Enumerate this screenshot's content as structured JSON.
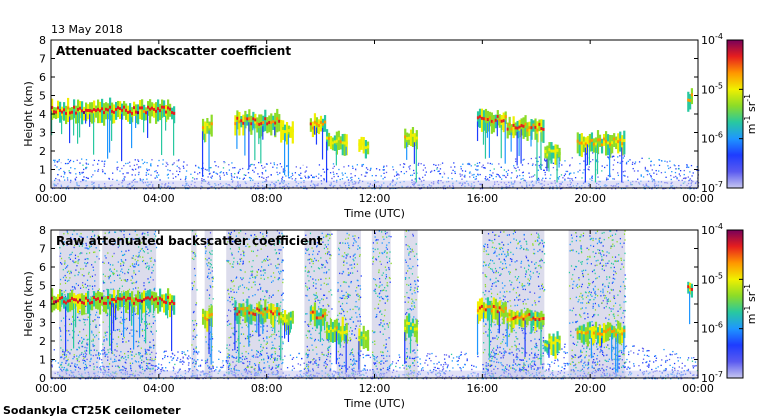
{
  "date_label": "13 May 2018",
  "footer": "Sodankyla CT25K ceilometer",
  "colors": {
    "frame": "#000000",
    "background_fill": "#dcdcec",
    "colormap": [
      "#c8c8f0",
      "#5a5af0",
      "#1e3cff",
      "#1e96ff",
      "#28c8a0",
      "#8cdc28",
      "#f0f000",
      "#ff9600",
      "#e61e1e",
      "#78005a"
    ]
  },
  "chart_data": [
    {
      "type": "heatmap",
      "title": "Attenuated backscatter coefficient",
      "xlabel": "Time (UTC)",
      "ylabel": "Height (km)",
      "xlim": [
        0,
        24
      ],
      "ylim": [
        0,
        8
      ],
      "x_ticks": [
        "00:00",
        "04:00",
        "08:00",
        "12:00",
        "16:00",
        "20:00",
        "00:00"
      ],
      "y_ticks": [
        "0",
        "1",
        "2",
        "3",
        "4",
        "5",
        "6",
        "7",
        "8"
      ],
      "colorbar": {
        "scale": "log",
        "range": [
          1e-07,
          0.0001
        ],
        "tick_labels": [
          "10",
          "10",
          "10",
          "10"
        ],
        "tick_exponents": [
          "-7",
          "-6",
          "-5",
          "-4"
        ],
        "unit": "m  sr",
        "unit_exponents": [
          "-1",
          "-1"
        ]
      },
      "cloud_layers": [
        {
          "t0": 0.0,
          "t1": 4.6,
          "height_km": 4.2,
          "intensity": 0.95
        },
        {
          "t0": 5.6,
          "t1": 6.0,
          "height_km": 3.3,
          "intensity": 0.8
        },
        {
          "t0": 6.8,
          "t1": 8.5,
          "height_km": 3.6,
          "intensity": 0.9
        },
        {
          "t0": 8.5,
          "t1": 9.0,
          "height_km": 3.2,
          "intensity": 0.7
        },
        {
          "t0": 9.6,
          "t1": 10.2,
          "height_km": 3.4,
          "intensity": 0.85
        },
        {
          "t0": 10.2,
          "t1": 11.0,
          "height_km": 2.6,
          "intensity": 0.75
        },
        {
          "t0": 11.4,
          "t1": 11.8,
          "height_km": 2.3,
          "intensity": 0.7
        },
        {
          "t0": 13.1,
          "t1": 13.6,
          "height_km": 2.8,
          "intensity": 0.75
        },
        {
          "t0": 15.8,
          "t1": 16.9,
          "height_km": 3.7,
          "intensity": 0.9
        },
        {
          "t0": 16.9,
          "t1": 18.3,
          "height_km": 3.3,
          "intensity": 0.9
        },
        {
          "t0": 18.3,
          "t1": 18.9,
          "height_km": 1.9,
          "intensity": 0.7
        },
        {
          "t0": 19.5,
          "t1": 21.3,
          "height_km": 2.5,
          "intensity": 0.8
        },
        {
          "t0": 23.6,
          "t1": 23.8,
          "height_km": 4.9,
          "intensity": 0.85
        }
      ],
      "boundary_layer_top_km": [
        [
          0,
          1.6
        ],
        [
          4,
          1.6
        ],
        [
          8,
          1.4
        ],
        [
          12,
          1.3
        ],
        [
          16,
          1.5
        ],
        [
          18.4,
          1.8
        ],
        [
          20,
          2.0
        ],
        [
          22,
          1.8
        ],
        [
          24,
          1.2
        ]
      ]
    },
    {
      "type": "heatmap",
      "title": "Raw attenuated backscatter coefficient",
      "xlabel": "Time (UTC)",
      "ylabel": "Height (km)",
      "xlim": [
        0,
        24
      ],
      "ylim": [
        0,
        8
      ],
      "x_ticks": [
        "00:00",
        "04:00",
        "08:00",
        "12:00",
        "16:00",
        "20:00",
        "00:00"
      ],
      "y_ticks": [
        "0",
        "1",
        "2",
        "3",
        "4",
        "5",
        "6",
        "7",
        "8"
      ],
      "colorbar": {
        "scale": "log",
        "range": [
          1e-07,
          0.0001
        ],
        "tick_labels": [
          "10",
          "10",
          "10",
          "10"
        ],
        "tick_exponents": [
          "-7",
          "-6",
          "-5",
          "-4"
        ],
        "unit": "m  sr",
        "unit_exponents": [
          "-1",
          "-1"
        ]
      },
      "cloud_layers": [
        {
          "t0": 0.0,
          "t1": 4.6,
          "height_km": 4.2,
          "intensity": 0.95
        },
        {
          "t0": 5.6,
          "t1": 6.0,
          "height_km": 3.3,
          "intensity": 0.8
        },
        {
          "t0": 6.8,
          "t1": 8.5,
          "height_km": 3.6,
          "intensity": 0.9
        },
        {
          "t0": 8.5,
          "t1": 9.0,
          "height_km": 3.2,
          "intensity": 0.7
        },
        {
          "t0": 9.6,
          "t1": 10.2,
          "height_km": 3.4,
          "intensity": 0.85
        },
        {
          "t0": 10.2,
          "t1": 11.0,
          "height_km": 2.6,
          "intensity": 0.75
        },
        {
          "t0": 11.4,
          "t1": 11.8,
          "height_km": 2.3,
          "intensity": 0.7
        },
        {
          "t0": 13.1,
          "t1": 13.6,
          "height_km": 2.8,
          "intensity": 0.75
        },
        {
          "t0": 15.8,
          "t1": 16.9,
          "height_km": 3.7,
          "intensity": 0.9
        },
        {
          "t0": 16.9,
          "t1": 18.3,
          "height_km": 3.3,
          "intensity": 0.9
        },
        {
          "t0": 18.3,
          "t1": 18.9,
          "height_km": 1.9,
          "intensity": 0.7
        },
        {
          "t0": 19.5,
          "t1": 21.3,
          "height_km": 2.5,
          "intensity": 0.8
        },
        {
          "t0": 23.6,
          "t1": 23.8,
          "height_km": 4.9,
          "intensity": 0.85
        }
      ],
      "noise_periods": [
        [
          0.3,
          1.8
        ],
        [
          1.9,
          3.9
        ],
        [
          5.2,
          5.4
        ],
        [
          5.7,
          6.0
        ],
        [
          6.5,
          8.6
        ],
        [
          9.4,
          10.4
        ],
        [
          10.6,
          11.5
        ],
        [
          11.9,
          12.6
        ],
        [
          13.1,
          13.6
        ],
        [
          16.0,
          18.3
        ],
        [
          19.2,
          21.3
        ]
      ]
    }
  ]
}
